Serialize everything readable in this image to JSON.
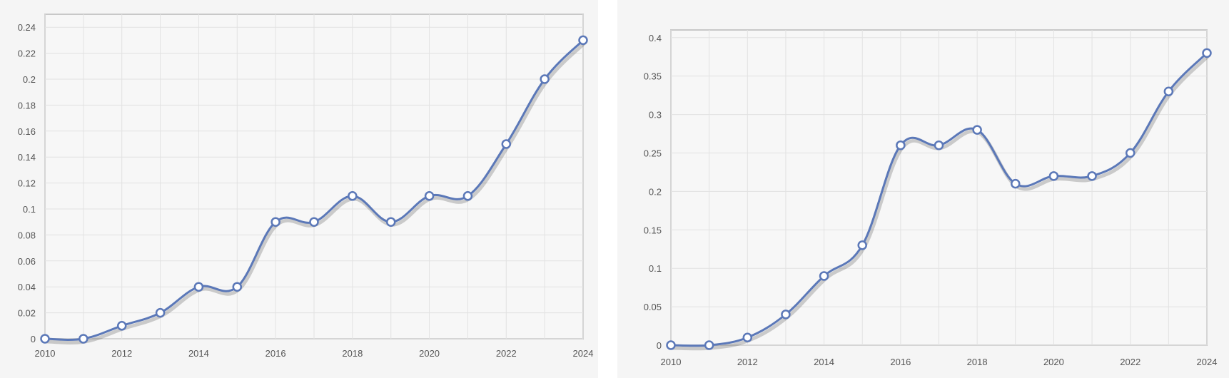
{
  "colors": {
    "series": "#5b78b8",
    "grid": "#e2e2e2",
    "panel_background": "#f5f5f5",
    "axis_text": "#555555"
  },
  "chart_data": [
    {
      "type": "line",
      "title": "",
      "xlabel": "",
      "ylabel": "",
      "smooth": true,
      "grid": true,
      "markers": "hollow-circle",
      "x": [
        2010,
        2011,
        2012,
        2013,
        2014,
        2015,
        2016,
        2017,
        2018,
        2019,
        2020,
        2021,
        2022,
        2023,
        2024
      ],
      "y": [
        0,
        0,
        0.01,
        0.02,
        0.04,
        0.04,
        0.09,
        0.09,
        0.11,
        0.09,
        0.11,
        0.11,
        0.15,
        0.2,
        0.23
      ],
      "xlim": [
        2010,
        2024
      ],
      "ylim": [
        0,
        0.25
      ],
      "x_ticks": [
        "2010",
        "2012",
        "2014",
        "2016",
        "2018",
        "2020",
        "2022",
        "2024"
      ],
      "y_ticks": [
        "0",
        "0.02",
        "0.04",
        "0.06",
        "0.08",
        "0.1",
        "0.12",
        "0.14",
        "0.16",
        "0.18",
        "0.2",
        "0.22",
        "0.24"
      ]
    },
    {
      "type": "line",
      "title": "",
      "xlabel": "",
      "ylabel": "",
      "smooth": true,
      "grid": true,
      "markers": "hollow-circle",
      "x": [
        2010,
        2011,
        2012,
        2013,
        2014,
        2015,
        2016,
        2017,
        2018,
        2019,
        2020,
        2021,
        2022,
        2023,
        2024
      ],
      "y": [
        0,
        0,
        0.01,
        0.04,
        0.09,
        0.13,
        0.26,
        0.26,
        0.28,
        0.21,
        0.22,
        0.22,
        0.25,
        0.33,
        0.38
      ],
      "xlim": [
        2010,
        2024
      ],
      "ylim": [
        0,
        0.41
      ],
      "x_ticks": [
        "2010",
        "2012",
        "2014",
        "2016",
        "2018",
        "2020",
        "2022",
        "2024"
      ],
      "y_ticks": [
        "0",
        "0.05",
        "0.1",
        "0.15",
        "0.2",
        "0.25",
        "0.3",
        "0.35",
        "0.4"
      ]
    }
  ]
}
